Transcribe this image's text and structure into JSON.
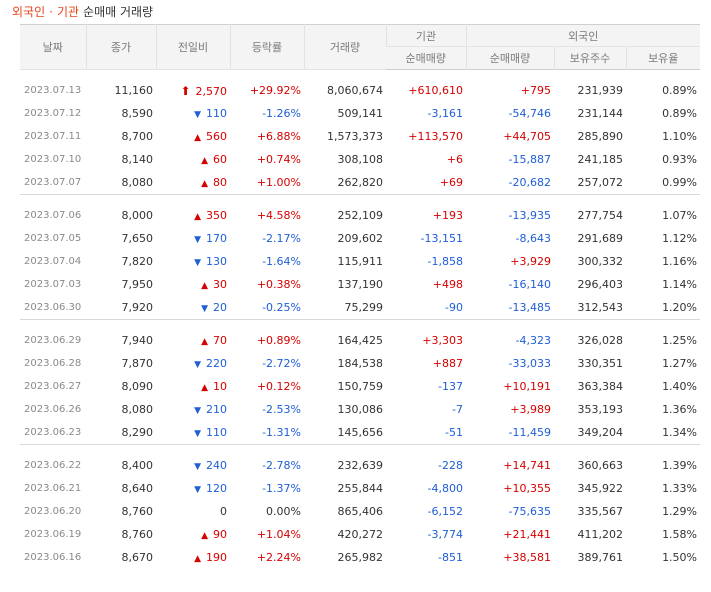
{
  "title": {
    "part1": "외국인",
    "sep": "·",
    "part2": "기관",
    "part3": "순매매 거래량"
  },
  "headers": {
    "date": "날짜",
    "close": "종가",
    "change": "전일비",
    "rate": "등락률",
    "volume": "거래량",
    "inst_group": "기관",
    "foreign_group": "외국인",
    "inst_net": "순매매량",
    "foreign_net": "순매매량",
    "foreign_holding": "보유주수",
    "foreign_ratio": "보유율"
  },
  "colors": {
    "up": "#d60000",
    "down": "#1e5ed6"
  },
  "rows": [
    {
      "date": "2023.07.13",
      "close": "11,160",
      "dir": "upper",
      "change": "2,570",
      "rate": "+29.92%",
      "volume": "8,060,674",
      "inst": "+610,610",
      "frn": "+795",
      "hold": "231,939",
      "ratio": "0.89%"
    },
    {
      "date": "2023.07.12",
      "close": "8,590",
      "dir": "down",
      "change": "110",
      "rate": "-1.26%",
      "volume": "509,141",
      "inst": "-3,161",
      "frn": "-54,746",
      "hold": "231,144",
      "ratio": "0.89%"
    },
    {
      "date": "2023.07.11",
      "close": "8,700",
      "dir": "up",
      "change": "560",
      "rate": "+6.88%",
      "volume": "1,573,373",
      "inst": "+113,570",
      "frn": "+44,705",
      "hold": "285,890",
      "ratio": "1.10%"
    },
    {
      "date": "2023.07.10",
      "close": "8,140",
      "dir": "up",
      "change": "60",
      "rate": "+0.74%",
      "volume": "308,108",
      "inst": "+6",
      "frn": "-15,887",
      "hold": "241,185",
      "ratio": "0.93%"
    },
    {
      "date": "2023.07.07",
      "close": "8,080",
      "dir": "up",
      "change": "80",
      "rate": "+1.00%",
      "volume": "262,820",
      "inst": "+69",
      "frn": "-20,682",
      "hold": "257,072",
      "ratio": "0.99%"
    },
    {
      "date": "2023.07.06",
      "close": "8,000",
      "dir": "up",
      "change": "350",
      "rate": "+4.58%",
      "volume": "252,109",
      "inst": "+193",
      "frn": "-13,935",
      "hold": "277,754",
      "ratio": "1.07%"
    },
    {
      "date": "2023.07.05",
      "close": "7,650",
      "dir": "down",
      "change": "170",
      "rate": "-2.17%",
      "volume": "209,602",
      "inst": "-13,151",
      "frn": "-8,643",
      "hold": "291,689",
      "ratio": "1.12%"
    },
    {
      "date": "2023.07.04",
      "close": "7,820",
      "dir": "down",
      "change": "130",
      "rate": "-1.64%",
      "volume": "115,911",
      "inst": "-1,858",
      "frn": "+3,929",
      "hold": "300,332",
      "ratio": "1.16%"
    },
    {
      "date": "2023.07.03",
      "close": "7,950",
      "dir": "up",
      "change": "30",
      "rate": "+0.38%",
      "volume": "137,190",
      "inst": "+498",
      "frn": "-16,140",
      "hold": "296,403",
      "ratio": "1.14%"
    },
    {
      "date": "2023.06.30",
      "close": "7,920",
      "dir": "down",
      "change": "20",
      "rate": "-0.25%",
      "volume": "75,299",
      "inst": "-90",
      "frn": "-13,485",
      "hold": "312,543",
      "ratio": "1.20%"
    },
    {
      "date": "2023.06.29",
      "close": "7,940",
      "dir": "up",
      "change": "70",
      "rate": "+0.89%",
      "volume": "164,425",
      "inst": "+3,303",
      "frn": "-4,323",
      "hold": "326,028",
      "ratio": "1.25%"
    },
    {
      "date": "2023.06.28",
      "close": "7,870",
      "dir": "down",
      "change": "220",
      "rate": "-2.72%",
      "volume": "184,538",
      "inst": "+887",
      "frn": "-33,033",
      "hold": "330,351",
      "ratio": "1.27%"
    },
    {
      "date": "2023.06.27",
      "close": "8,090",
      "dir": "up",
      "change": "10",
      "rate": "+0.12%",
      "volume": "150,759",
      "inst": "-137",
      "frn": "+10,191",
      "hold": "363,384",
      "ratio": "1.40%"
    },
    {
      "date": "2023.06.26",
      "close": "8,080",
      "dir": "down",
      "change": "210",
      "rate": "-2.53%",
      "volume": "130,086",
      "inst": "-7",
      "frn": "+3,989",
      "hold": "353,193",
      "ratio": "1.36%"
    },
    {
      "date": "2023.06.23",
      "close": "8,290",
      "dir": "down",
      "change": "110",
      "rate": "-1.31%",
      "volume": "145,656",
      "inst": "-51",
      "frn": "-11,459",
      "hold": "349,204",
      "ratio": "1.34%"
    },
    {
      "date": "2023.06.22",
      "close": "8,400",
      "dir": "down",
      "change": "240",
      "rate": "-2.78%",
      "volume": "232,639",
      "inst": "-228",
      "frn": "+14,741",
      "hold": "360,663",
      "ratio": "1.39%"
    },
    {
      "date": "2023.06.21",
      "close": "8,640",
      "dir": "down",
      "change": "120",
      "rate": "-1.37%",
      "volume": "255,844",
      "inst": "-4,800",
      "frn": "+10,355",
      "hold": "345,922",
      "ratio": "1.33%"
    },
    {
      "date": "2023.06.20",
      "close": "8,760",
      "dir": "none",
      "change": "0",
      "rate": "0.00%",
      "volume": "865,406",
      "inst": "-6,152",
      "frn": "-75,635",
      "hold": "335,567",
      "ratio": "1.29%"
    },
    {
      "date": "2023.06.19",
      "close": "8,760",
      "dir": "up",
      "change": "90",
      "rate": "+1.04%",
      "volume": "420,272",
      "inst": "-3,774",
      "frn": "+21,441",
      "hold": "411,202",
      "ratio": "1.58%"
    },
    {
      "date": "2023.06.16",
      "close": "8,670",
      "dir": "up",
      "change": "190",
      "rate": "+2.24%",
      "volume": "265,982",
      "inst": "-851",
      "frn": "+38,581",
      "hold": "389,761",
      "ratio": "1.50%"
    }
  ]
}
